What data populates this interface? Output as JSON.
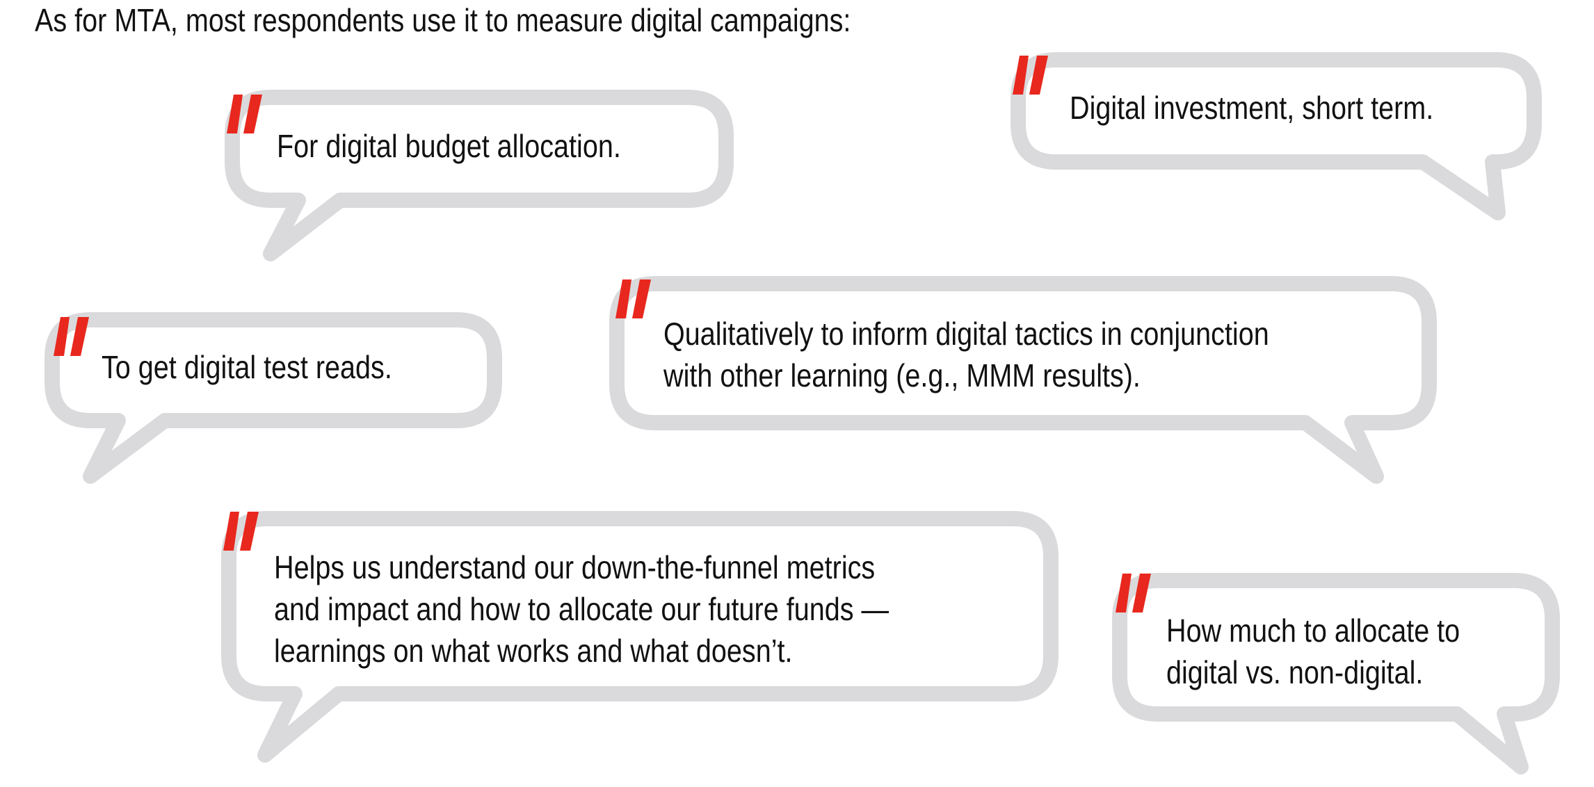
{
  "intro": "As for MTA, most respondents use it to measure digital campaigns:",
  "colors": {
    "bubble_outline": "#dadadc",
    "quote_mark": "#e8281e",
    "text": "#111111"
  },
  "quote_icon": "quotation-mark-icon",
  "quotes": [
    {
      "lines": [
        "For digital budget allocation."
      ]
    },
    {
      "lines": [
        "Digital investment, short term."
      ]
    },
    {
      "lines": [
        "To get digital test reads."
      ]
    },
    {
      "lines": [
        "Qualitatively to inform digital tactics in conjunction",
        "with other learning (e.g., MMM results)."
      ]
    },
    {
      "lines": [
        "Helps us understand our down-the-funnel metrics",
        "and impact and how to allocate our future funds —",
        "learnings on what works and what doesn’t."
      ]
    },
    {
      "lines": [
        "How much to allocate to",
        "digital vs. non-digital."
      ]
    }
  ]
}
